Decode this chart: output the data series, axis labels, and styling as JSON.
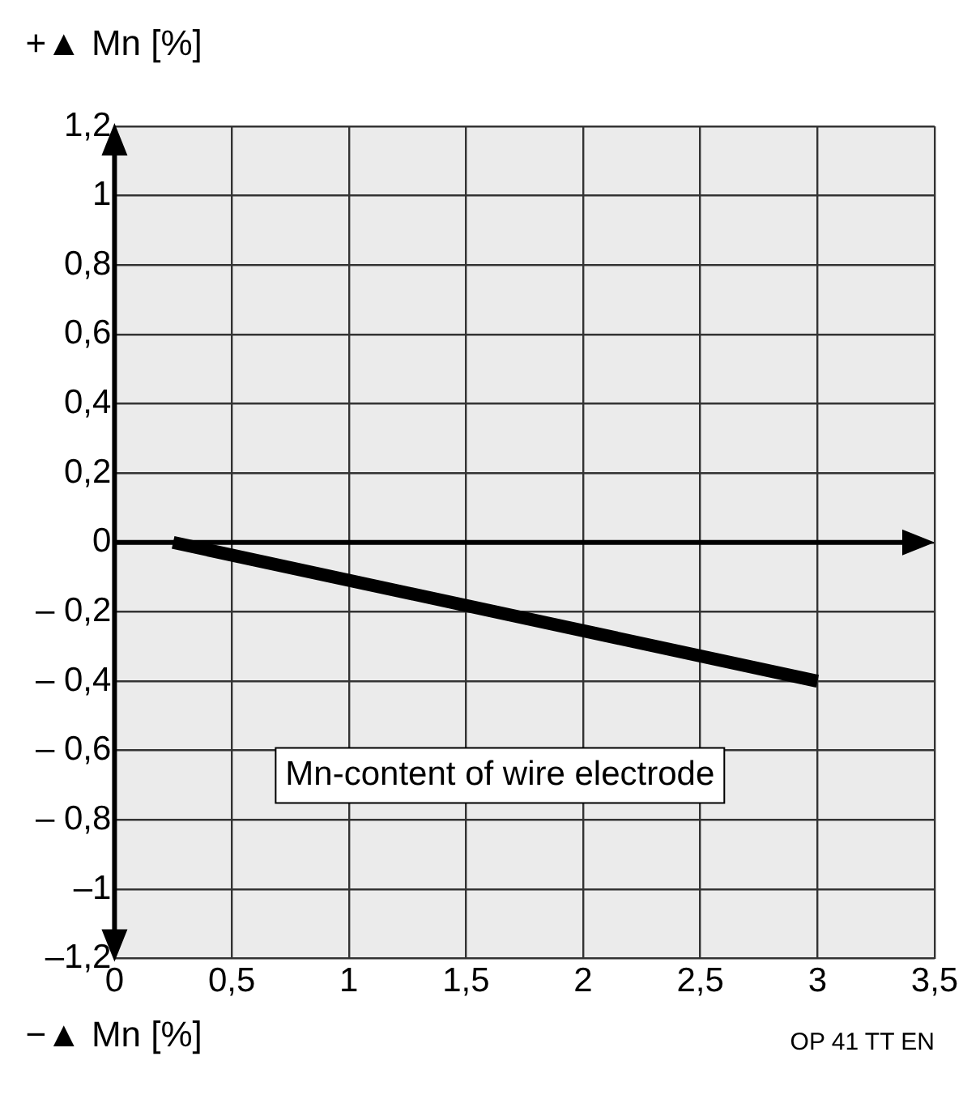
{
  "chart_data": {
    "type": "line",
    "ylabel": "+▲ Mn [%]",
    "xlabel": "Mn-content of wire electrode",
    "annotations": [
      "−▲ Mn [%]",
      "OP 41 TT EN"
    ],
    "x": [
      0.25,
      3
    ],
    "series": [
      {
        "color": "#000000",
        "values": [
          0,
          -0.4
        ]
      }
    ],
    "xlim": [
      0,
      3.5
    ],
    "xticks": [
      0,
      {
        "value": 0.5,
        "label": "0,5"
      },
      1,
      {
        "value": 1.5,
        "label": "1,5"
      },
      2,
      {
        "value": 2.5,
        "label": "2,5"
      },
      3,
      {
        "value": 3.5,
        "label": "3,5"
      }
    ],
    "ylim": [
      -1.2,
      1.2
    ],
    "yticks": [
      {
        "value": -1.2,
        "label": "–1,2"
      },
      {
        "value": -1,
        "label": "–1"
      },
      {
        "value": -0.8,
        "label": "– 0,8"
      },
      {
        "value": -0.6,
        "label": "– 0,6"
      },
      {
        "value": -0.4,
        "label": "– 0,4"
      },
      {
        "value": -0.2,
        "label": "– 0,2"
      },
      0,
      {
        "value": 0.2,
        "label": "0,2"
      },
      {
        "value": 0.4,
        "label": "0,4"
      },
      {
        "value": 0.6,
        "label": "0,6"
      },
      {
        "value": 0.8,
        "label": "0,8"
      },
      1,
      {
        "value": 1.2,
        "label": "1,2"
      }
    ],
    "grid": true,
    "legend": false,
    "marker": "none",
    "line_style": "solid"
  }
}
